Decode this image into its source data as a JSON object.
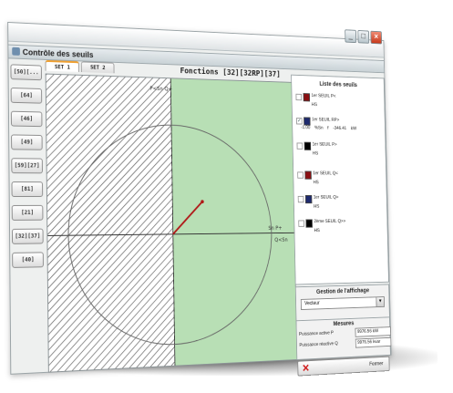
{
  "window": {
    "title": "Contrôle des seuils",
    "buttons": {
      "minimize": "_",
      "maximize": "□",
      "close": "×"
    }
  },
  "sidebar": {
    "buttons": [
      "[50][...",
      "[64]",
      "[46]",
      "[49]",
      "[59][27]",
      "[81]",
      "[21]",
      "[32][37]",
      "[40]"
    ]
  },
  "tabs": [
    {
      "label": "SET 1",
      "active": true
    },
    {
      "label": "SET 2",
      "active": false
    }
  ],
  "functions_title": "Fonctions [32][32RP][37]",
  "plot": {
    "labels": {
      "top_axis": "P<Sn  Q+",
      "right_axis": "Sn  P+",
      "right_axis_2": "Q<Sn"
    },
    "vector": {
      "magnitude": 0.42,
      "angle_deg": 45
    },
    "colors": {
      "green_zone": "#b8dfb5",
      "hatch": "#4a4a4a",
      "vector": "#b01818",
      "circle": "#666666"
    }
  },
  "thresholds": {
    "title": "Liste des seuils",
    "items": [
      {
        "name": "1er SEUIL P<",
        "state": "HS",
        "color": "#8b0f12",
        "checked": false
      },
      {
        "name": "1er SEUIL RP>",
        "state": "",
        "color": "#1e2a6e",
        "checked": true,
        "values": [
          "-1.00",
          "%Sn",
          "f",
          "-346.41",
          "kW"
        ]
      },
      {
        "name": "1er SEUIL P>",
        "state": "HS",
        "color": "#000000",
        "checked": false
      },
      {
        "name": "1er SEUIL Q<",
        "state": "HS",
        "color": "#8b0f12",
        "checked": false
      },
      {
        "name": "1er SEUIL Q>",
        "state": "HS",
        "color": "#1e2a6e",
        "checked": false
      },
      {
        "name": "2ème SEUIL Q>>",
        "state": "HS",
        "color": "#000000",
        "checked": false
      }
    ]
  },
  "display": {
    "title": "Gestion de l'affichage",
    "selected": "Vecteur"
  },
  "measures": {
    "title": "Mesures",
    "rows": [
      {
        "label": "Puissance active P",
        "value": "9976.56 kW"
      },
      {
        "label": "Puissance réactive Q",
        "value": "9976.56 kvar"
      }
    ]
  },
  "close_button": {
    "label": "Fermer"
  }
}
